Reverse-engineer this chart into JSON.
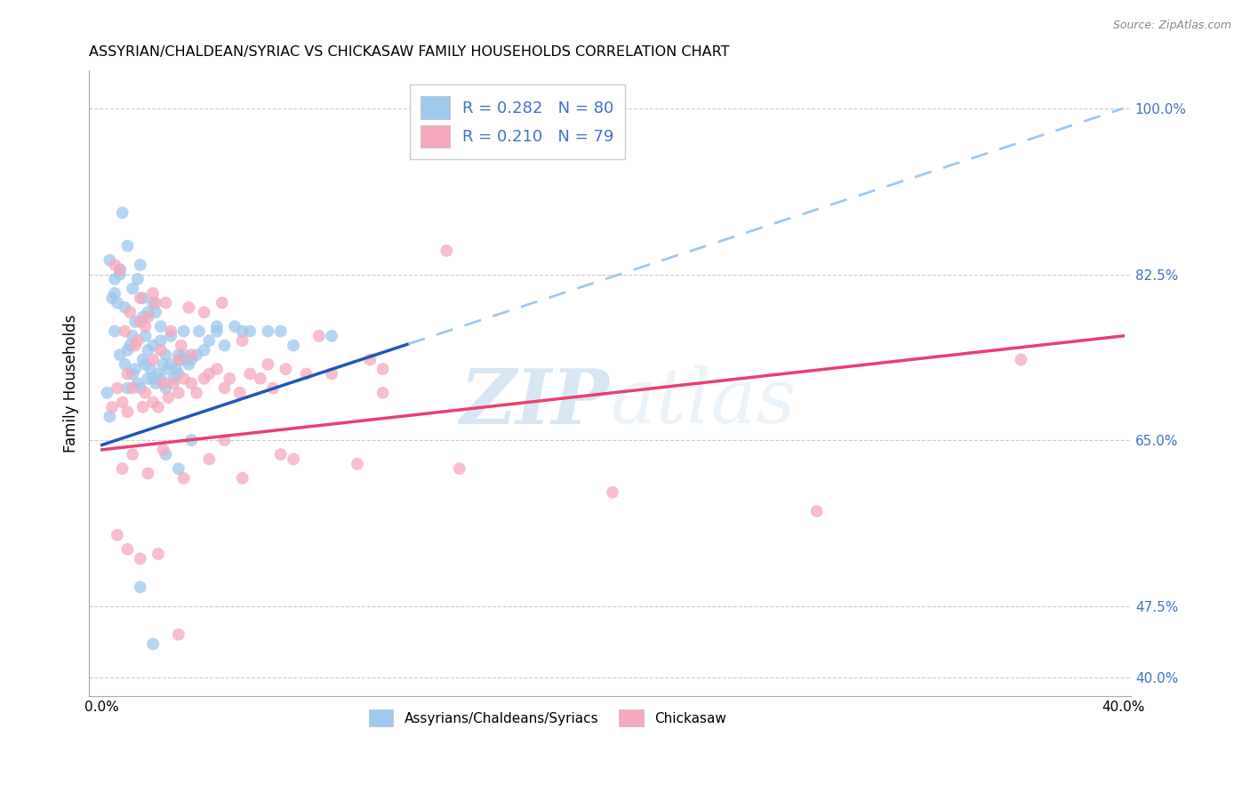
{
  "title": "ASSYRIAN/CHALDEAN/SYRIAC VS CHICKASAW FAMILY HOUSEHOLDS CORRELATION CHART",
  "source": "Source: ZipAtlas.com",
  "ylabel": "Family Households",
  "right_ytick_vals": [
    40.0,
    47.5,
    65.0,
    82.5,
    100.0
  ],
  "right_ytick_labels": [
    "40.0%",
    "47.5%",
    "65.0%",
    "82.5%",
    "100.0%"
  ],
  "legend_label1": "Assyrians/Chaldeans/Syriacs",
  "legend_label2": "Chickasaw",
  "R1": "0.282",
  "N1": "80",
  "R2": "0.210",
  "N2": "79",
  "blue_color": "#9EC8EE",
  "pink_color": "#F5A8BE",
  "blue_line_color": "#2255BB",
  "pink_line_color": "#E84070",
  "dashed_line_color": "#9EC8EE",
  "watermark_zip": "ZIP",
  "watermark_atlas": "atlas",
  "xmin": 0.0,
  "xmax": 40.0,
  "ymin": 38.0,
  "ymax": 104.0,
  "blue_solid_xend": 12.0,
  "blue_line_x0": 0.0,
  "blue_line_y0": 64.5,
  "blue_line_x1": 40.0,
  "blue_line_y1": 100.0,
  "pink_line_x0": 0.0,
  "pink_line_y0": 64.0,
  "pink_line_x1": 40.0,
  "pink_line_y1": 76.0,
  "blue_scatter_x": [
    0.2,
    0.3,
    0.4,
    0.5,
    0.5,
    0.6,
    0.7,
    0.7,
    0.8,
    0.9,
    1.0,
    1.0,
    1.1,
    1.2,
    1.2,
    1.3,
    1.3,
    1.4,
    1.5,
    1.5,
    1.6,
    1.6,
    1.7,
    1.7,
    1.8,
    1.8,
    1.9,
    2.0,
    2.0,
    2.1,
    2.1,
    2.2,
    2.3,
    2.3,
    2.4,
    2.5,
    2.5,
    2.6,
    2.7,
    2.8,
    2.9,
    3.0,
    3.0,
    3.1,
    3.2,
    3.3,
    3.4,
    3.5,
    3.7,
    4.0,
    4.2,
    4.5,
    4.8,
    5.2,
    5.8,
    6.5,
    7.5,
    0.3,
    0.5,
    0.7,
    0.9,
    1.0,
    1.2,
    1.4,
    1.6,
    1.8,
    2.0,
    2.3,
    2.7,
    3.2,
    3.8,
    4.5,
    5.5,
    7.0,
    9.0,
    3.5,
    2.5,
    3.0,
    1.5,
    2.0
  ],
  "blue_scatter_y": [
    70.0,
    67.5,
    80.0,
    76.5,
    82.0,
    79.5,
    74.0,
    82.5,
    89.0,
    73.0,
    70.5,
    74.5,
    75.0,
    72.0,
    76.0,
    72.5,
    77.5,
    71.0,
    70.5,
    83.5,
    73.5,
    78.0,
    73.0,
    76.0,
    71.5,
    74.5,
    72.5,
    71.5,
    75.0,
    71.0,
    78.5,
    72.0,
    71.5,
    75.5,
    73.0,
    70.5,
    74.0,
    72.5,
    73.0,
    71.5,
    72.5,
    72.0,
    74.0,
    73.5,
    74.0,
    73.5,
    73.0,
    73.5,
    74.0,
    74.5,
    75.5,
    76.5,
    75.0,
    77.0,
    76.5,
    76.5,
    75.0,
    84.0,
    80.5,
    83.0,
    79.0,
    85.5,
    81.0,
    82.0,
    80.0,
    78.5,
    79.5,
    77.0,
    76.0,
    76.5,
    76.5,
    77.0,
    76.5,
    76.5,
    76.0,
    65.0,
    63.5,
    62.0,
    49.5,
    43.5
  ],
  "pink_scatter_x": [
    0.4,
    0.6,
    0.8,
    1.0,
    1.0,
    1.2,
    1.3,
    1.5,
    1.5,
    1.6,
    1.7,
    1.8,
    2.0,
    2.0,
    2.1,
    2.2,
    2.4,
    2.5,
    2.6,
    2.8,
    3.0,
    3.0,
    3.2,
    3.4,
    3.5,
    3.7,
    4.0,
    4.2,
    4.5,
    4.8,
    5.0,
    5.4,
    5.8,
    6.2,
    6.7,
    7.2,
    8.0,
    9.0,
    11.0,
    0.5,
    0.7,
    0.9,
    1.1,
    1.4,
    1.7,
    2.0,
    2.3,
    2.7,
    3.1,
    3.5,
    4.0,
    4.7,
    5.5,
    6.5,
    8.5,
    10.5,
    13.5,
    18.0,
    0.8,
    1.2,
    1.8,
    2.4,
    3.2,
    4.2,
    5.5,
    7.5,
    10.0,
    14.0,
    20.0,
    28.0,
    36.0,
    0.6,
    1.0,
    1.5,
    2.2,
    3.0,
    4.8,
    7.0,
    11.0
  ],
  "pink_scatter_y": [
    68.5,
    70.5,
    69.0,
    68.0,
    72.0,
    70.5,
    75.0,
    80.0,
    77.5,
    68.5,
    70.0,
    78.0,
    69.0,
    73.5,
    79.5,
    68.5,
    71.0,
    79.5,
    69.5,
    71.0,
    70.0,
    73.5,
    71.5,
    79.0,
    71.0,
    70.0,
    71.5,
    72.0,
    72.5,
    70.5,
    71.5,
    70.0,
    72.0,
    71.5,
    70.5,
    72.5,
    72.0,
    72.0,
    72.5,
    83.5,
    83.0,
    76.5,
    78.5,
    75.5,
    77.0,
    80.5,
    74.5,
    76.5,
    75.0,
    74.0,
    78.5,
    79.5,
    75.5,
    73.0,
    76.0,
    73.5,
    85.0,
    100.0,
    62.0,
    63.5,
    61.5,
    64.0,
    61.0,
    63.0,
    61.0,
    63.0,
    62.5,
    62.0,
    59.5,
    57.5,
    73.5,
    55.0,
    53.5,
    52.5,
    53.0,
    44.5,
    65.0,
    63.5,
    70.0
  ]
}
